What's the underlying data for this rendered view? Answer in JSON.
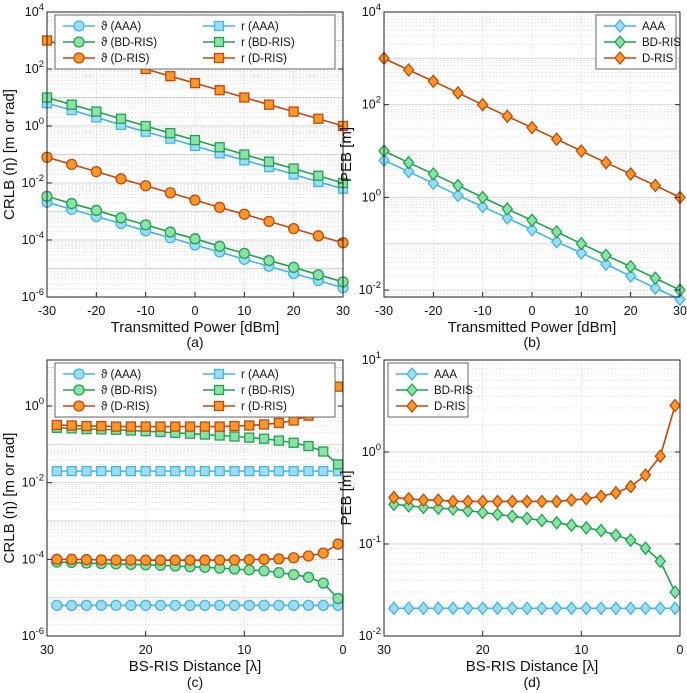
{
  "figure": {
    "colors": {
      "aaa_line": "#3fb8e0",
      "aaa_fill": "#9fdcf4",
      "bd_line": "#1ea44e",
      "bd_fill": "#8fe0a8",
      "d_line": "#c9450a",
      "d_fill": "#f59a2a",
      "grid": "#d4d4d4"
    }
  },
  "chart_data": [
    {
      "id": "a",
      "type": "line",
      "caption": "(a)",
      "xlabel": "Transmitted Power [dBm]",
      "ylabel": "CRLB (η) [m or rad]",
      "xlim": [
        -30,
        30
      ],
      "xticks": [
        "-30",
        "-20",
        "-10",
        "0",
        "10",
        "20",
        "30"
      ],
      "xtick_values": [
        -30,
        -20,
        -10,
        0,
        10,
        20,
        30
      ],
      "yscale": "log",
      "ylim_exp": [
        -6,
        4
      ],
      "ytick_exps": [
        -6,
        -4,
        -2,
        0,
        2,
        4
      ],
      "ytick_labels": [
        "10-6",
        "10-4",
        "10-2",
        "100",
        "102",
        "104"
      ],
      "x": [
        -30,
        -25,
        -20,
        -15,
        -10,
        -5,
        0,
        5,
        10,
        15,
        20,
        25,
        30
      ],
      "legend": {
        "position": "top",
        "columns": 2
      },
      "series": [
        {
          "name": "ϑ (AAA)",
          "marker": "circle",
          "color": "aaa",
          "values": [
            0.0021,
            0.0012,
            0.00067,
            0.00038,
            0.00021,
            0.00012,
            6.7e-05,
            3.8e-05,
            2.1e-05,
            1.2e-05,
            6.7e-06,
            3.8e-06,
            2.1e-06
          ]
        },
        {
          "name": "r (AAA)",
          "marker": "square",
          "color": "aaa",
          "values": [
            6.3,
            3.6,
            2.0,
            1.1,
            0.63,
            0.36,
            0.2,
            0.11,
            0.063,
            0.036,
            0.02,
            0.011,
            0.0063
          ]
        },
        {
          "name": "ϑ (BD-RIS)",
          "marker": "circle",
          "color": "bd",
          "values": [
            0.0034,
            0.0019,
            0.0011,
            0.0006,
            0.00034,
            0.00019,
            0.00011,
            6e-05,
            3.4e-05,
            1.9e-05,
            1.1e-05,
            6e-06,
            3.4e-06
          ]
        },
        {
          "name": "r (BD-RIS)",
          "marker": "square",
          "color": "bd",
          "values": [
            10,
            5.6,
            3.2,
            1.8,
            1.0,
            0.56,
            0.32,
            0.18,
            0.1,
            0.056,
            0.032,
            0.018,
            0.01
          ]
        },
        {
          "name": "ϑ (D-RIS)",
          "marker": "circle",
          "color": "d",
          "values": [
            0.08,
            0.045,
            0.025,
            0.014,
            0.008,
            0.0045,
            0.0025,
            0.0014,
            0.0008,
            0.00045,
            0.00025,
            0.00014,
            8e-05
          ]
        },
        {
          "name": "r (D-RIS)",
          "marker": "square",
          "color": "d",
          "values": [
            1000,
            560,
            320,
            180,
            100,
            56,
            32,
            18,
            10,
            5.6,
            3.2,
            1.8,
            1.0
          ]
        }
      ]
    },
    {
      "id": "b",
      "type": "line",
      "caption": "(b)",
      "xlabel": "Transmitted Power [dBm]",
      "ylabel": "PEB [m]",
      "xlim": [
        -30,
        30
      ],
      "xticks": [
        "-30",
        "-20",
        "-10",
        "0",
        "10",
        "20",
        "30"
      ],
      "xtick_values": [
        -30,
        -20,
        -10,
        0,
        10,
        20,
        30
      ],
      "yscale": "log",
      "ylim_exp": [
        -2.15,
        4
      ],
      "ytick_exps": [
        -2,
        0,
        2,
        4
      ],
      "ytick_labels": [
        "10-2",
        "100",
        "102",
        "104"
      ],
      "x": [
        -30,
        -25,
        -20,
        -15,
        -10,
        -5,
        0,
        5,
        10,
        15,
        20,
        25,
        30
      ],
      "legend": {
        "position": "top-right",
        "columns": 1
      },
      "series": [
        {
          "name": "AAA",
          "marker": "diamond",
          "color": "aaa",
          "values": [
            6.3,
            3.6,
            2.0,
            1.1,
            0.63,
            0.36,
            0.2,
            0.11,
            0.063,
            0.036,
            0.02,
            0.011,
            0.0063
          ]
        },
        {
          "name": "BD-RIS",
          "marker": "diamond",
          "color": "bd",
          "values": [
            10,
            5.6,
            3.2,
            1.8,
            1.0,
            0.56,
            0.32,
            0.18,
            0.1,
            0.056,
            0.032,
            0.018,
            0.01
          ]
        },
        {
          "name": "D-RIS",
          "marker": "diamond",
          "color": "d",
          "values": [
            1000,
            560,
            320,
            180,
            100,
            56,
            32,
            18,
            10,
            5.6,
            3.2,
            1.8,
            1.0
          ]
        }
      ]
    },
    {
      "id": "c",
      "type": "line",
      "caption": "(c)",
      "xlabel": "BS-RIS Distance [λ]",
      "ylabel": "CRLB (η) [m or rad]",
      "xlim": [
        30,
        0
      ],
      "xticks": [
        "30",
        "20",
        "10",
        "0"
      ],
      "xtick_values": [
        30,
        20,
        10,
        0
      ],
      "yscale": "log",
      "ylim_exp": [
        -6,
        1.2
      ],
      "ytick_exps": [
        -6,
        -4,
        -2,
        0
      ],
      "ytick_labels": [
        "10-6",
        "10-4",
        "10-2",
        "100"
      ],
      "x": [
        29,
        27.5,
        26,
        24.5,
        23,
        21.5,
        20,
        18.5,
        17,
        15.5,
        14,
        12.5,
        11,
        9.5,
        8,
        6.5,
        5,
        3.5,
        2,
        0.5
      ],
      "legend": {
        "position": "top",
        "columns": 2
      },
      "series": [
        {
          "name": "ϑ (AAA)",
          "marker": "circle",
          "color": "aaa",
          "values": [
            6.3e-06,
            6.3e-06,
            6.3e-06,
            6.3e-06,
            6.3e-06,
            6.3e-06,
            6.3e-06,
            6.3e-06,
            6.3e-06,
            6.3e-06,
            6.3e-06,
            6.3e-06,
            6.3e-06,
            6.3e-06,
            6.3e-06,
            6.3e-06,
            6.3e-06,
            6.3e-06,
            6.3e-06,
            6.3e-06
          ]
        },
        {
          "name": "r (AAA)",
          "marker": "square",
          "color": "aaa",
          "values": [
            0.02,
            0.02,
            0.02,
            0.02,
            0.02,
            0.02,
            0.02,
            0.02,
            0.02,
            0.02,
            0.02,
            0.02,
            0.02,
            0.02,
            0.02,
            0.02,
            0.02,
            0.02,
            0.02,
            0.02
          ]
        },
        {
          "name": "ϑ (BD-RIS)",
          "marker": "circle",
          "color": "bd",
          "values": [
            8.5e-05,
            8.3e-05,
            8e-05,
            7.8e-05,
            7.6e-05,
            7.4e-05,
            7.2e-05,
            7e-05,
            6.7e-05,
            6.4e-05,
            6.2e-05,
            5.9e-05,
            5.6e-05,
            5.3e-05,
            5e-05,
            4.5e-05,
            4e-05,
            3.4e-05,
            2.4e-05,
            9.5e-06
          ]
        },
        {
          "name": "r (BD-RIS)",
          "marker": "square",
          "color": "bd",
          "values": [
            0.27,
            0.26,
            0.25,
            0.245,
            0.24,
            0.23,
            0.22,
            0.21,
            0.2,
            0.19,
            0.18,
            0.17,
            0.16,
            0.15,
            0.14,
            0.125,
            0.11,
            0.09,
            0.065,
            0.03
          ]
        },
        {
          "name": "ϑ (D-RIS)",
          "marker": "circle",
          "color": "d",
          "values": [
            0.0001,
            0.0001,
            9.8e-05,
            9.7e-05,
            9.6e-05,
            9.6e-05,
            9.5e-05,
            9.5e-05,
            9.5e-05,
            9.5e-05,
            9.5e-05,
            9.6e-05,
            9.6e-05,
            9.8e-05,
            0.0001,
            0.000103,
            0.00011,
            0.000122,
            0.000145,
            0.00025
          ]
        },
        {
          "name": "r (D-RIS)",
          "marker": "square",
          "color": "d",
          "values": [
            0.32,
            0.31,
            0.3,
            0.3,
            0.29,
            0.29,
            0.29,
            0.29,
            0.29,
            0.29,
            0.29,
            0.29,
            0.3,
            0.31,
            0.33,
            0.36,
            0.42,
            0.56,
            0.9,
            3.2
          ]
        }
      ]
    },
    {
      "id": "d",
      "type": "line",
      "caption": "(d)",
      "xlabel": "BS-RIS Distance [λ]",
      "ylabel": "PEB [m]",
      "xlim": [
        30,
        0
      ],
      "xticks": [
        "30",
        "20",
        "10",
        "0"
      ],
      "xtick_values": [
        30,
        20,
        10,
        0
      ],
      "yscale": "log",
      "ylim_exp": [
        -2,
        1
      ],
      "ytick_exps": [
        -2,
        -1,
        0,
        1
      ],
      "ytick_labels": [
        "10-2",
        "10-1",
        "100",
        "101"
      ],
      "x": [
        29,
        27.5,
        26,
        24.5,
        23,
        21.5,
        20,
        18.5,
        17,
        15.5,
        14,
        12.5,
        11,
        9.5,
        8,
        6.5,
        5,
        3.5,
        2,
        0.5
      ],
      "legend": {
        "position": "top-left",
        "columns": 1
      },
      "series": [
        {
          "name": "AAA",
          "marker": "diamond",
          "color": "aaa",
          "values": [
            0.02,
            0.02,
            0.02,
            0.02,
            0.02,
            0.02,
            0.02,
            0.02,
            0.02,
            0.02,
            0.02,
            0.02,
            0.02,
            0.02,
            0.02,
            0.02,
            0.02,
            0.02,
            0.02,
            0.02
          ]
        },
        {
          "name": "BD-RIS",
          "marker": "diamond",
          "color": "bd",
          "values": [
            0.27,
            0.26,
            0.25,
            0.245,
            0.24,
            0.23,
            0.22,
            0.21,
            0.2,
            0.19,
            0.18,
            0.17,
            0.16,
            0.15,
            0.14,
            0.125,
            0.11,
            0.09,
            0.065,
            0.03
          ]
        },
        {
          "name": "D-RIS",
          "marker": "diamond",
          "color": "d",
          "values": [
            0.32,
            0.31,
            0.3,
            0.3,
            0.29,
            0.29,
            0.29,
            0.29,
            0.29,
            0.29,
            0.29,
            0.29,
            0.3,
            0.31,
            0.33,
            0.36,
            0.42,
            0.56,
            0.9,
            3.2
          ]
        }
      ]
    }
  ]
}
